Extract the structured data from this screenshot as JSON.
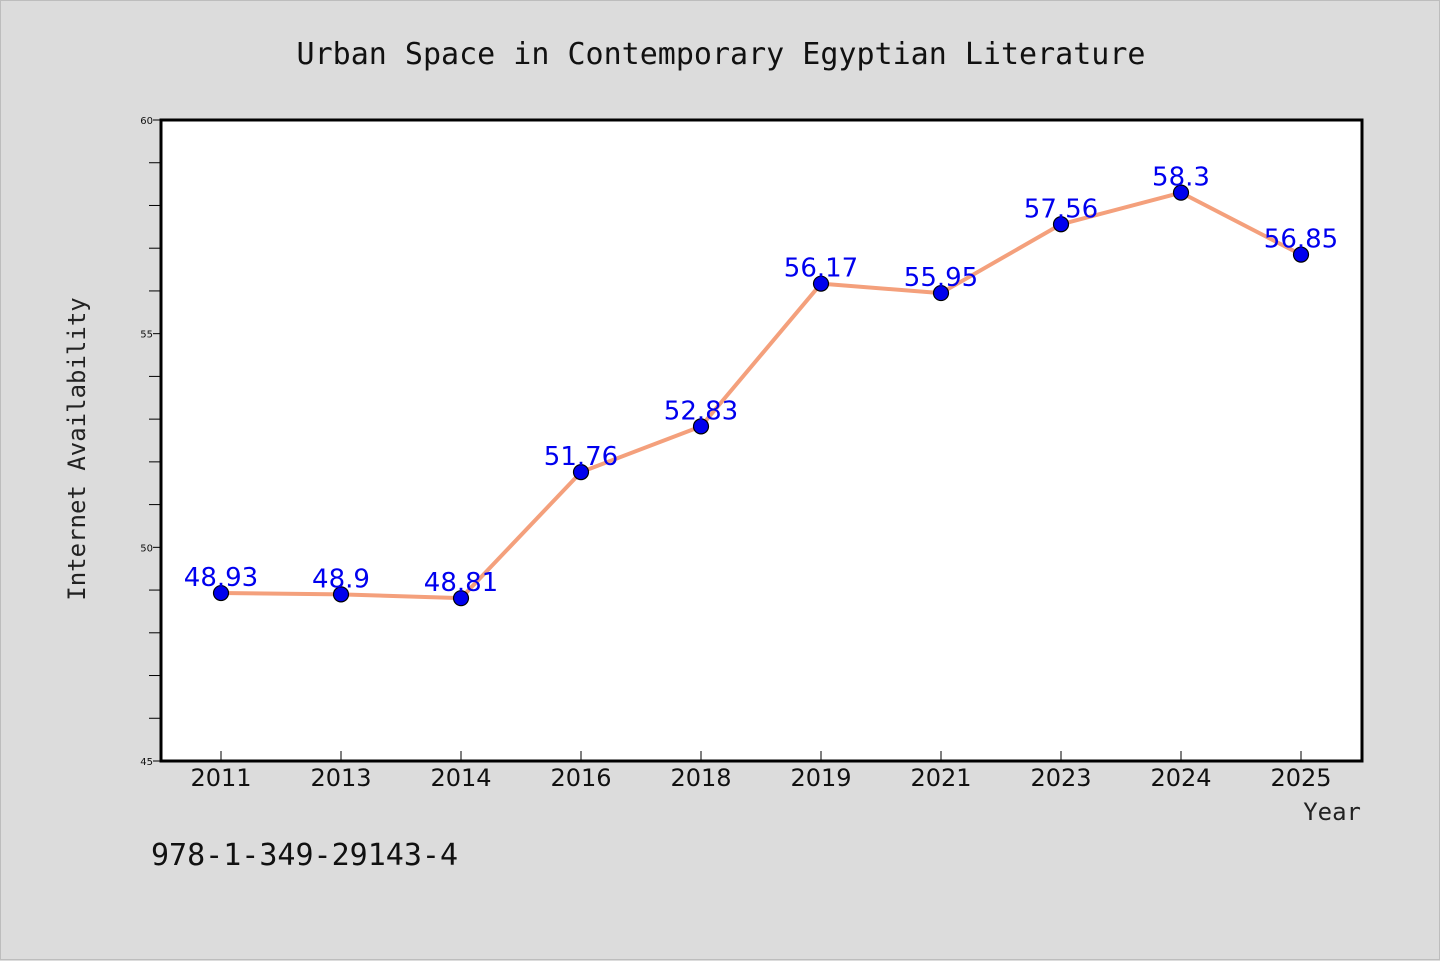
{
  "chart_data": {
    "type": "line",
    "title": "Urban Space in Contemporary Egyptian Literature",
    "xlabel": "Year",
    "ylabel": "Internet Availability",
    "categories": [
      "2011",
      "2013",
      "2014",
      "2016",
      "2018",
      "2019",
      "2021",
      "2023",
      "2024",
      "2025"
    ],
    "series": [
      {
        "values": [
          48.93,
          48.9,
          48.81,
          51.76,
          52.83,
          56.17,
          55.95,
          57.56,
          58.3,
          56.85
        ],
        "labels": [
          "48.93",
          "48.9",
          "48.81",
          "51.76",
          "52.83",
          "56.17",
          "55.95",
          "57.56",
          "58.3",
          "56.85"
        ],
        "line_color": "#f4a07c",
        "marker_color": "#0000ee"
      }
    ],
    "ylim": [
      45,
      60
    ],
    "yticks": [
      "45",
      "50",
      "55",
      "60"
    ],
    "grid": false,
    "legend": "none",
    "background": "#dcdcdc",
    "plot_background": "#ffffff"
  },
  "footer": {
    "isbn": "978-1-349-29143-4"
  }
}
